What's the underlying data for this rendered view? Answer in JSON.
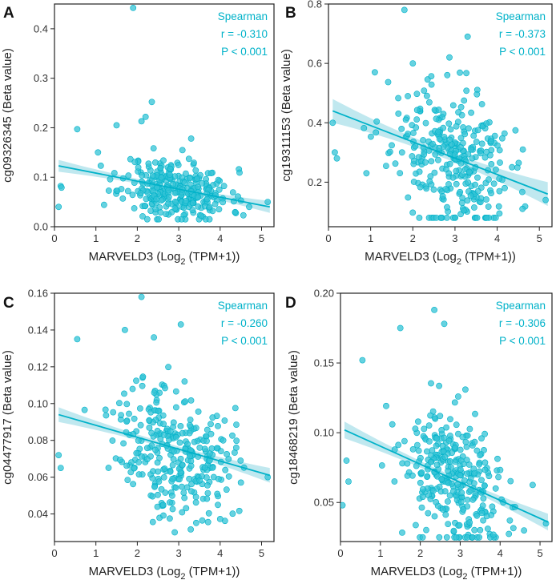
{
  "colors": {
    "accent": "#00B2C9",
    "point_fill": "#33C3D6",
    "band": "#8DD6E2",
    "axis": "#222222"
  },
  "chart_data": [
    {
      "panel": "A",
      "type": "scatter",
      "xlabel_main": "MARVELD3 (Log",
      "xlabel_sub": "2",
      "xlabel_tail": " (TPM+1))",
      "ylabel": "cg09326345 (Beta value)",
      "xlim": [
        0,
        5.3
      ],
      "ylim": [
        0,
        0.45
      ],
      "xticks": [
        0,
        1,
        2,
        3,
        4,
        5
      ],
      "xtick_labels": [
        "0",
        "1",
        "2",
        "3",
        "4",
        "5"
      ],
      "yticks": [
        0,
        0.1,
        0.2,
        0.3,
        0.4
      ],
      "ytick_labels": [
        "0.0",
        "0.1",
        "0.2",
        "0.3",
        "0.4"
      ],
      "annotation": [
        "Spearman",
        "r = -0.310",
        "P < 0.001"
      ],
      "fit": {
        "x": [
          0.1,
          5.2
        ],
        "y": [
          0.123,
          0.04
        ],
        "ci": 0.012
      },
      "cluster": {
        "cx": 2.95,
        "sx": 0.65,
        "y0": 0.11,
        "slope": -0.012,
        "sy": 0.03,
        "ymin": 0.015,
        "ymax": 0.26,
        "n": 300,
        "seed": 11
      },
      "points": [
        [
          0.1,
          0.04
        ],
        [
          0.15,
          0.082
        ],
        [
          0.17,
          0.079
        ],
        [
          0.55,
          0.197
        ],
        [
          1.9,
          0.442
        ],
        [
          2.35,
          0.252
        ],
        [
          2.2,
          0.222
        ],
        [
          2.1,
          0.213
        ],
        [
          1.5,
          0.205
        ],
        [
          5.15,
          0.05
        ],
        [
          4.7,
          0.04
        ],
        [
          3.3,
          0.178
        ],
        [
          1.05,
          0.15
        ]
      ]
    },
    {
      "panel": "B",
      "type": "scatter",
      "xlabel_main": "MARVELD3 (Log",
      "xlabel_sub": "2",
      "xlabel_tail": " (TPM+1))",
      "ylabel": "cg19311153 (Beta value)",
      "xlim": [
        0,
        5.3
      ],
      "ylim": [
        0.05,
        0.8
      ],
      "xticks": [
        0,
        1,
        2,
        3,
        4,
        5
      ],
      "xtick_labels": [
        "0",
        "1",
        "2",
        "3",
        "4",
        "5"
      ],
      "yticks": [
        0.2,
        0.4,
        0.6,
        0.8
      ],
      "ytick_labels": [
        "0.2",
        "0.4",
        "0.6",
        "0.8"
      ],
      "annotation": [
        "Spearman",
        "r = -0.373",
        "P < 0.001"
      ],
      "fit": {
        "x": [
          0.1,
          5.2
        ],
        "y": [
          0.44,
          0.16
        ],
        "ci": 0.04
      },
      "cluster": {
        "cx": 2.9,
        "sx": 0.7,
        "y0": 0.44,
        "slope": -0.055,
        "sy": 0.12,
        "ymin": 0.08,
        "ymax": 0.62,
        "n": 300,
        "seed": 23
      },
      "points": [
        [
          0.1,
          0.4
        ],
        [
          0.15,
          0.3
        ],
        [
          0.2,
          0.28
        ],
        [
          1.8,
          0.78
        ],
        [
          3.3,
          0.69
        ],
        [
          1.1,
          0.57
        ],
        [
          2.0,
          0.6
        ],
        [
          0.9,
          0.23
        ],
        [
          5.15,
          0.14
        ],
        [
          4.6,
          0.11
        ]
      ]
    },
    {
      "panel": "C",
      "type": "scatter",
      "xlabel_main": "MARVELD3 (Log",
      "xlabel_sub": "2",
      "xlabel_tail": " (TPM+1))",
      "ylabel": "cg04477917 (Beta value)",
      "xlim": [
        0,
        5.3
      ],
      "ylim": [
        0.025,
        0.16
      ],
      "xticks": [
        0,
        1,
        2,
        3,
        4,
        5
      ],
      "xtick_labels": [
        "0",
        "1",
        "2",
        "3",
        "4",
        "5"
      ],
      "yticks": [
        0.04,
        0.06,
        0.08,
        0.1,
        0.12,
        0.14,
        0.16
      ],
      "ytick_labels": [
        "0.04",
        "0.06",
        "0.08",
        "0.10",
        "0.12",
        "0.14",
        "0.16"
      ],
      "annotation": [
        "Spearman",
        "r = -0.260",
        "P < 0.001"
      ],
      "fit": {
        "x": [
          0.1,
          5.2
        ],
        "y": [
          0.094,
          0.061
        ],
        "ci": 0.004
      },
      "cluster": {
        "cx": 2.9,
        "sx": 0.7,
        "y0": 0.094,
        "slope": -0.0065,
        "sy": 0.018,
        "ymin": 0.03,
        "ymax": 0.145,
        "n": 300,
        "seed": 37
      },
      "points": [
        [
          0.1,
          0.072
        ],
        [
          0.15,
          0.065
        ],
        [
          0.55,
          0.135
        ],
        [
          2.1,
          0.158
        ],
        [
          3.05,
          0.143
        ],
        [
          5.15,
          0.06
        ],
        [
          1.7,
          0.14
        ],
        [
          2.4,
          0.136
        ]
      ]
    },
    {
      "panel": "D",
      "type": "scatter",
      "xlabel_main": "MARVELD3 (Log",
      "xlabel_sub": "2",
      "xlabel_tail": " (TPM+1))",
      "ylabel": "cg18468219 (Beta value)",
      "xlim": [
        0,
        5.3
      ],
      "ylim": [
        0.022,
        0.2
      ],
      "xticks": [
        0,
        1,
        2,
        3,
        4,
        5
      ],
      "xtick_labels": [
        "0",
        "1",
        "2",
        "3",
        "4",
        "5"
      ],
      "yticks": [
        0.05,
        0.1,
        0.15,
        0.2
      ],
      "ytick_labels": [
        "0.05",
        "0.10",
        "0.15",
        "0.20"
      ],
      "annotation": [
        "Spearman",
        "r = -0.306",
        "P < 0.001"
      ],
      "fit": {
        "x": [
          0.1,
          5.2
        ],
        "y": [
          0.102,
          0.036
        ],
        "ci": 0.006
      },
      "cluster": {
        "cx": 2.9,
        "sx": 0.7,
        "y0": 0.103,
        "slope": -0.013,
        "sy": 0.025,
        "ymin": 0.025,
        "ymax": 0.17,
        "n": 300,
        "seed": 53
      },
      "points": [
        [
          0.05,
          0.048
        ],
        [
          0.15,
          0.08
        ],
        [
          0.2,
          0.065
        ],
        [
          0.55,
          0.152
        ],
        [
          2.35,
          0.188
        ],
        [
          1.5,
          0.175
        ],
        [
          2.6,
          0.178
        ],
        [
          5.15,
          0.035
        ],
        [
          4.6,
          0.03
        ]
      ]
    }
  ]
}
